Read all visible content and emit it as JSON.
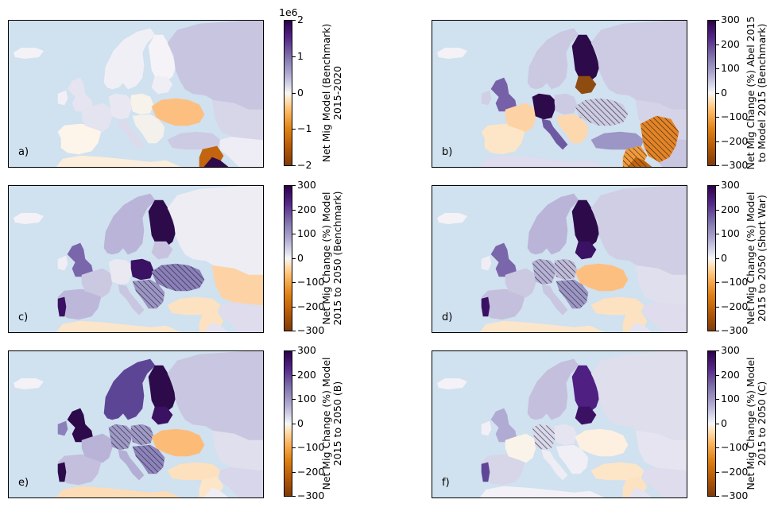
{
  "panels": [
    {
      "id": "a",
      "letter": "a)",
      "cbar_label_lines": [
        "Net Mig Model (Benchmark)",
        "2015-2020"
      ],
      "cbar_ticks": [
        "2",
        "1",
        "0",
        "−1",
        "−2"
      ],
      "cbar_offset": "1e6",
      "countries": {
        "Scandinavia": "#f1eff6",
        "Finland": "#f5f3f8",
        "Russia": "#c8c5e0",
        "UK": "#e6e4f0",
        "Ireland": "#f2f0f6",
        "Iberia": "#fdf5ea",
        "France": "#e4e3f0",
        "Germany": "#e9e8f2",
        "Poland": "#f7f3ea",
        "Baltics": "#f0eef5",
        "Ukraine": "#fdbf80",
        "Italy": "#dcdbeb",
        "Balkans": "#f4f1ec",
        "Turkey": "#cdcbe3",
        "North Africa": "#fbeedc",
        "Middle East": "#eeecf4",
        "Kazakhstan": "#d7d5e8",
        "Syria": "#c3640e",
        "Arabia": "#2f0b4c"
      },
      "hatched": []
    },
    {
      "id": "b",
      "letter": "b)",
      "cbar_label_lines": [
        "Net Mig Change (%) Abel 2015",
        "to Model 2015 (Benchmark)"
      ],
      "cbar_ticks": [
        "300",
        "200",
        "100",
        "0",
        "−100",
        "−200",
        "−300"
      ],
      "cbar_offset": "",
      "countries": {
        "Scandinavia": "#cbc8e2",
        "Finland": "#2d0a4a",
        "Russia": "#cdcae3",
        "UK": "#7660a8",
        "Ireland": "#d1cfe6",
        "Iberia": "#fde5c8",
        "France": "#fdd3a6",
        "Germany": "#2d0a4a",
        "Poland": "#cdcbe3",
        "Baltics": "#8f4c10",
        "Ukraine": "#cdcbe3",
        "Italy": "#6e5aa2",
        "Balkans": "#fdd8ae",
        "Turkey": "#9b96c6",
        "North Africa": "#dedcee",
        "Middle East": "#c9c6e1",
        "Kazakhstan": "#d5d3e8",
        "Syria": "#f29a3b",
        "Arabia": "#c3640e",
        "Caucasus": "#e58424"
      },
      "hatched": [
        "Ukraine",
        "Syria",
        "Caucasus",
        "Arabia"
      ]
    },
    {
      "id": "c",
      "letter": "c)",
      "cbar_label_lines": [
        "Net Mig Change (%) Model",
        "2015 to 2050 (Benchmark)"
      ],
      "cbar_ticks": [
        "300",
        "200",
        "100",
        "0",
        "−100",
        "−200",
        "−300"
      ],
      "cbar_offset": "",
      "countries": {
        "Scandinavia": "#b9b4d8",
        "Finland": "#2d0a4a",
        "Russia": "#eeedf4",
        "UK": "#7a66ab",
        "Ireland": "#f0eef5",
        "Iberia": "#bdb8da",
        "Portugal": "#3b1163",
        "France": "#cbc8e2",
        "Germany": "#eae9f2",
        "Poland": "#3b1163",
        "Baltics": "#c7c3df",
        "Ukraine": "#8b7fbb",
        "Italy": "#c9c6e1",
        "Balkans": "#9c96c6",
        "Turkey": "#fde2c1",
        "North Africa": "#fbe6cc",
        "Middle East": "#dedced",
        "Kazakhstan": "#fdd3a6",
        "Syria": "#fde2c1",
        "Arabia": "#e5e3f0"
      },
      "hatched": [
        "Ukraine",
        "Balkans"
      ]
    },
    {
      "id": "d",
      "letter": "d)",
      "cbar_label_lines": [
        "Net Mig Change (%) Model",
        "2015 to 2050 (Short War)"
      ],
      "cbar_ticks": [
        "300",
        "200",
        "100",
        "0",
        "−100",
        "−200",
        "−300"
      ],
      "cbar_offset": "",
      "countries": {
        "Scandinavia": "#b9b4d8",
        "Finland": "#2d0a4a",
        "Russia": "#d0cee5",
        "UK": "#7a66ab",
        "Ireland": "#f0eef5",
        "Iberia": "#c3bfdd",
        "Portugal": "#3b1163",
        "France": "#cbc8e2",
        "Germany": "#b6b1d6",
        "Poland": "#c0bbdb",
        "Baltics": "#3b1163",
        "Ukraine": "#fdbf80",
        "Italy": "#c9c6e1",
        "Balkans": "#9c96c6",
        "Turkey": "#fde2c1",
        "North Africa": "#fbe6cc",
        "Middle East": "#dedced",
        "Kazakhstan": "#e0dfee",
        "Syria": "#fde2c1",
        "Arabia": "#e5e3f0"
      },
      "hatched": [
        "Germany",
        "Poland",
        "Balkans"
      ]
    },
    {
      "id": "e",
      "letter": "e)",
      "cbar_label_lines": [
        "Net Mig Change (%) Model",
        "2015 to 2050 (B)"
      ],
      "cbar_ticks": [
        "300",
        "200",
        "100",
        "0",
        "−100",
        "−200",
        "−300"
      ],
      "cbar_offset": "",
      "countries": {
        "Scandinavia": "#5d4596",
        "Finland": "#2d0a4a",
        "Russia": "#c9c6e1",
        "UK": "#2d0a4a",
        "Ireland": "#8c80bb",
        "Iberia": "#c3bfdd",
        "Portugal": "#2d0a4a",
        "France": "#b8b3d7",
        "Germany": "#9f99c8",
        "Poland": "#9f99c8",
        "Baltics": "#3b1163",
        "Ukraine": "#fdbb78",
        "Italy": "#b3aed4",
        "Balkans": "#8d84bd",
        "Turkey": "#fde0bd",
        "North Africa": "#fddcb8",
        "Middle East": "#d8d6ea",
        "Kazakhstan": "#e0dfee",
        "Syria": "#fde6c8",
        "Arabia": "#f0eef5"
      },
      "hatched": [
        "Germany",
        "Poland",
        "Balkans"
      ]
    },
    {
      "id": "f",
      "letter": "f)",
      "cbar_label_lines": [
        "Net Mig Change (%) Model",
        "2015 to 2050 (C)"
      ],
      "cbar_ticks": [
        "300",
        "200",
        "100",
        "0",
        "−100",
        "−200",
        "−300"
      ],
      "cbar_offset": "",
      "countries": {
        "Scandinavia": "#c3bfdd",
        "Finland": "#4f1f82",
        "Russia": "#dfdeed",
        "UK": "#b0abd3",
        "Ireland": "#f2f0f6",
        "Iberia": "#d7d5e8",
        "Portugal": "#5e4597",
        "France": "#faf3ea",
        "Germany": "#dad8eb",
        "Poland": "#e6e4f0",
        "Baltics": "#3b1163",
        "Ukraine": "#fdf0e1",
        "Italy": "#eeedf4",
        "Balkans": "#f1eff6",
        "Turkey": "#fde6c8",
        "North Africa": "#f3f1f7",
        "Middle East": "#dedced",
        "Kazakhstan": "#e6e4f0",
        "Syria": "#fde2c1",
        "Arabia": "#e5e3f0"
      },
      "hatched": [
        "Germany"
      ]
    }
  ]
}
